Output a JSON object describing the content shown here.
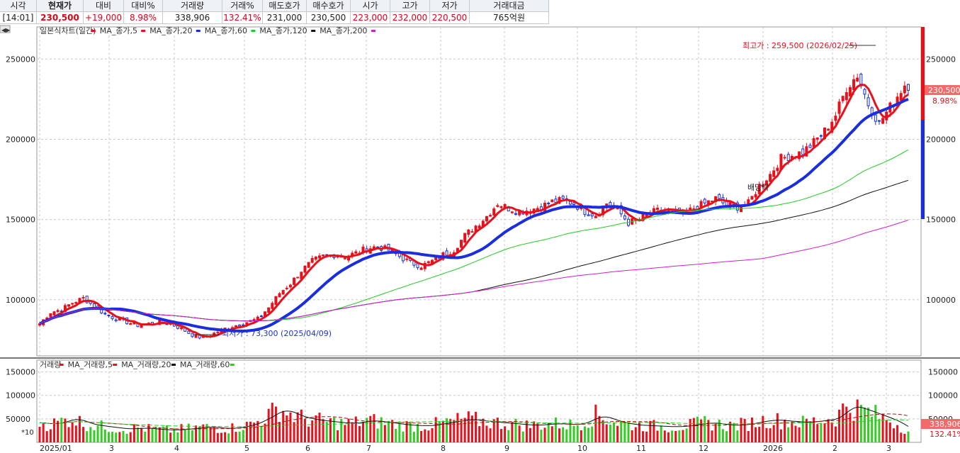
{
  "header": {
    "columns": [
      {
        "label": "시각",
        "value": "[14:01]",
        "value_color": "#222222",
        "bold_label": false,
        "bold_value": false
      },
      {
        "label": "현재가",
        "value": "230,500",
        "value_color": "#e0001a",
        "bold_label": true,
        "bold_value": true
      },
      {
        "label": "대비",
        "value": "+19,000",
        "value_color": "#e0001a",
        "bold_label": false,
        "bold_value": false
      },
      {
        "label": "대비%",
        "value": "8.98%",
        "value_color": "#e0001a",
        "bold_label": false,
        "bold_value": false
      },
      {
        "label": "거래량",
        "value": "338,906",
        "value_color": "#222222",
        "bold_label": false,
        "bold_value": false
      },
      {
        "label": "거래%",
        "value": "132.41%",
        "value_color": "#e0001a",
        "bold_label": false,
        "bold_value": false
      },
      {
        "label": "매도호가",
        "value": "231,000",
        "value_color": "#222222",
        "bold_label": false,
        "bold_value": false
      },
      {
        "label": "매수호가",
        "value": "230,500",
        "value_color": "#222222",
        "bold_label": false,
        "bold_value": false
      },
      {
        "label": "시가",
        "value": "223,000",
        "value_color": "#e0001a",
        "bold_label": false,
        "bold_value": false
      },
      {
        "label": "고가",
        "value": "232,000",
        "value_color": "#e0001a",
        "bold_label": false,
        "bold_value": false
      },
      {
        "label": "저가",
        "value": "220,500",
        "value_color": "#e0001a",
        "bold_label": false,
        "bold_value": false
      },
      {
        "label": "거래대금",
        "value": "765억원",
        "value_color": "#222222",
        "bold_label": false,
        "bold_value": false
      }
    ]
  },
  "colors": {
    "up": "#e8101a",
    "down": "#1a2ee0",
    "ma5": "#e8101a",
    "ma20": "#1a2ee0",
    "ma60": "#22cc22",
    "ma120": "#111111",
    "ma200": "#d020d0",
    "vol_up": "#e8101a",
    "vol_down": "#33cc22",
    "grid": "#c8c8c8"
  },
  "price_chart": {
    "legend": [
      {
        "text": "일본식차트(일간)",
        "color": "#e8101a"
      },
      {
        "text": "MA_종가,5",
        "color": "#e8101a"
      },
      {
        "text": "MA_종가,20",
        "color": "#1a2ee0"
      },
      {
        "text": "MA_종가,60",
        "color": "#22cc22"
      },
      {
        "text": "MA_종가,120",
        "color": "#111111"
      },
      {
        "text": "MA_종가,200",
        "color": "#d020d0"
      }
    ],
    "y_ticks": [
      "250000",
      "200000",
      "150000",
      "100000"
    ],
    "y_tick_values": [
      250000,
      200000,
      150000,
      100000
    ],
    "y_range": [
      65000,
      270000
    ],
    "annotations": {
      "high": {
        "text": "최고가 : 259,500 (2026/02/25)",
        "value": 259500
      },
      "low": {
        "text": "최저가 : 73,300 (2025/04/09)",
        "value": 73300
      },
      "dividend": {
        "text": "배당락"
      }
    },
    "current_price_label": "230,500",
    "current_change_label": "8.98%"
  },
  "volume_chart": {
    "legend": [
      {
        "text": "거래량",
        "color": "#e8101a"
      },
      {
        "text": "MA_거래량,5",
        "color": "#e8101a"
      },
      {
        "text": "MA_거래량,20",
        "color": "#111111"
      },
      {
        "text": "MA_거래량,60",
        "color": "#33cc22"
      }
    ],
    "y_ticks": [
      "150000",
      "100000",
      "50000"
    ],
    "y_tick_values": [
      150000,
      100000,
      50000
    ],
    "y_range": [
      0,
      175000
    ],
    "scale_label": "*10",
    "current_volume_label": "338,906",
    "current_volume_pct": "132.41%"
  },
  "x_axis": {
    "labels": [
      "2025/01",
      "3",
      "4",
      "5",
      "6",
      "7",
      "8",
      "9",
      "10",
      "11",
      "12",
      "2026",
      "2",
      "3"
    ]
  },
  "chart_data": {
    "type": "candlestick",
    "x_start": "2025/01/02",
    "closes_weekly": [
      85000,
      92000,
      94000,
      98000,
      101000,
      96000,
      91000,
      88000,
      86000,
      84000,
      85000,
      86000,
      85000,
      82000,
      78000,
      76000,
      79000,
      82000,
      84000,
      86000,
      88000,
      95000,
      104000,
      110000,
      118000,
      124000,
      127000,
      128000,
      127000,
      129000,
      132000,
      133000,
      131000,
      127000,
      123000,
      121000,
      124000,
      128000,
      131000,
      140000,
      146000,
      152000,
      160000,
      157000,
      155000,
      156000,
      158000,
      161000,
      162000,
      160000,
      155000,
      153000,
      160000,
      156000,
      148000,
      150000,
      154000,
      156000,
      155000,
      153000,
      157000,
      160000,
      163000,
      159000,
      158000,
      160000,
      171000,
      178000,
      188000,
      190000,
      192000,
      198000,
      205000,
      215000,
      232000,
      240000,
      222000,
      210000,
      220000,
      230500
    ],
    "volume_weekly": [
      42000,
      38000,
      45000,
      52000,
      40000,
      36000,
      33000,
      30000,
      28000,
      31000,
      29000,
      27000,
      26000,
      28000,
      30000,
      33000,
      31000,
      29000,
      32000,
      36000,
      45000,
      58000,
      72000,
      60000,
      52000,
      48000,
      45000,
      43000,
      40000,
      42000,
      47000,
      44000,
      41000,
      38000,
      36000,
      35000,
      37000,
      42000,
      45000,
      50000,
      47000,
      44000,
      42000,
      40000,
      38000,
      36000,
      38000,
      40000,
      39000,
      37000,
      45000,
      58000,
      50000,
      42000,
      38000,
      36000,
      35000,
      34000,
      33000,
      35000,
      38000,
      42000,
      40000,
      36000,
      37000,
      40000,
      45000,
      48000,
      46000,
      44000,
      42000,
      45000,
      48000,
      52000,
      80000,
      72000,
      65000,
      55000,
      48000,
      33890
    ]
  }
}
